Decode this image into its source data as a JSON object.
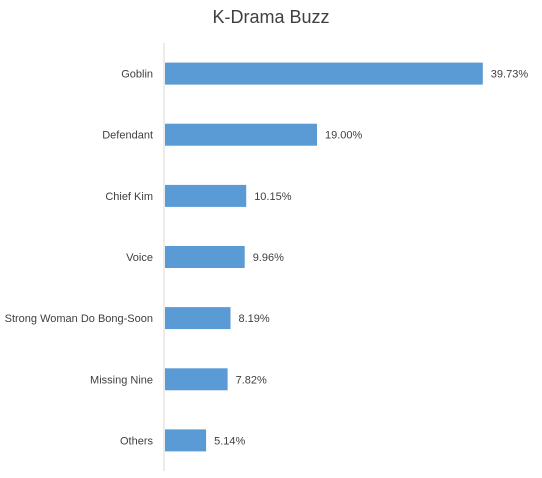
{
  "chart_data": {
    "type": "bar",
    "orientation": "horizontal",
    "title": "K-Drama Buzz",
    "categories": [
      "Goblin",
      "Defendant",
      "Chief Kim",
      "Voice",
      "Strong Woman Do Bong-Soon",
      "Missing Nine",
      "Others"
    ],
    "values": [
      39.73,
      19.0,
      10.15,
      9.96,
      8.19,
      7.82,
      5.14
    ],
    "value_labels": [
      "39.73%",
      "19.00%",
      "10.15%",
      "9.96%",
      "8.19%",
      "7.82%",
      "5.14%"
    ],
    "unit": "%",
    "xlim": [
      0,
      40
    ],
    "grid": false,
    "legend": "none",
    "bar_color": "#5b9bd5"
  }
}
